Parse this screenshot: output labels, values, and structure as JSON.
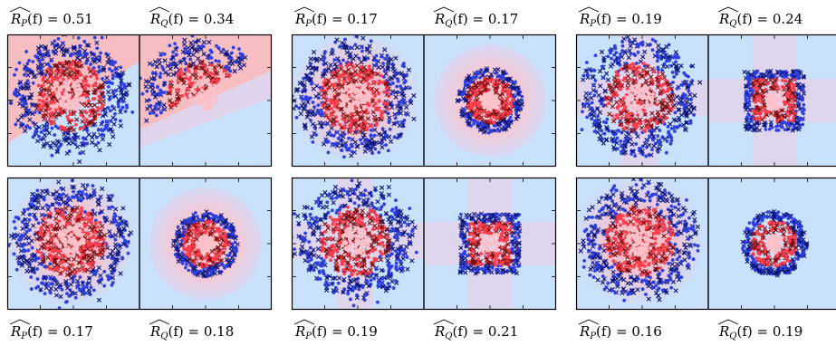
{
  "colors": {
    "background_light": "#c9e1fb",
    "region_red": "#ffb7b7",
    "region_faint": "#e3d2ea",
    "outer_dots": "#2e3fe0",
    "outer_cross": "#0b1478",
    "inner_dots": "#ff3d4d",
    "inner_cross": "#7a0d10",
    "core": "#ffc1c9"
  },
  "groups": [
    {
      "top": {
        "left": {
          "name": "P",
          "value": "0.51"
        },
        "right": {
          "name": "Q",
          "value": "0.34"
        }
      },
      "bottom": {
        "left": {
          "name": "P",
          "value": "0.17"
        },
        "right": {
          "name": "Q",
          "value": "0.18"
        }
      }
    },
    {
      "top": {
        "left": {
          "name": "P",
          "value": "0.17"
        },
        "right": {
          "name": "Q",
          "value": "0.17"
        }
      },
      "bottom": {
        "left": {
          "name": "P",
          "value": "0.19"
        },
        "right": {
          "name": "Q",
          "value": "0.21"
        }
      }
    },
    {
      "top": {
        "left": {
          "name": "P",
          "value": "0.19"
        },
        "right": {
          "name": "Q",
          "value": "0.24"
        }
      },
      "bottom": {
        "left": {
          "name": "P",
          "value": "0.16"
        },
        "right": {
          "name": "Q",
          "value": "0.19"
        }
      }
    }
  ],
  "label_prefix": "R",
  "label_function": "(f) = "
}
